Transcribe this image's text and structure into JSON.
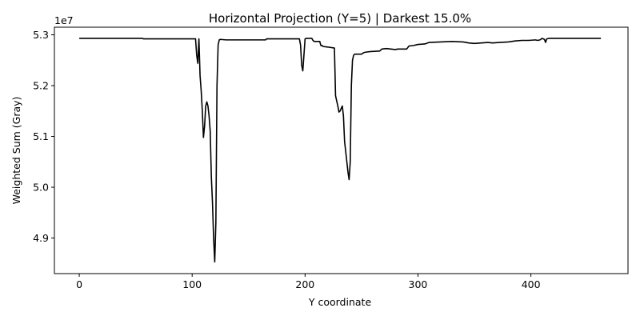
{
  "chart_data": {
    "type": "line",
    "title": "Horizontal Projection (Y=5) | Darkest 15.0%",
    "xlabel": "Y coordinate",
    "ylabel": "Weighted Sum (Gray)",
    "y_offset_label": "1e7",
    "xlim": [
      -22,
      486
    ],
    "ylim": [
      4.83,
      5.315
    ],
    "x_ticks": [
      0,
      100,
      200,
      300,
      400
    ],
    "x_tick_labels": [
      "0",
      "100",
      "200",
      "300",
      "400"
    ],
    "y_ticks": [
      4.9,
      5.0,
      5.1,
      5.2,
      5.3
    ],
    "y_tick_labels": [
      "4.9",
      "5.0",
      "5.1",
      "5.2",
      "5.3"
    ],
    "grid": false,
    "line_color": "#000000",
    "series": [
      {
        "x": [
          0,
          56,
          57,
          103,
          104,
          105,
          106,
          107,
          108,
          109,
          110,
          111,
          112,
          113,
          114,
          115,
          116,
          117,
          118,
          119,
          120,
          121,
          122,
          123,
          124,
          125,
          130,
          165,
          166,
          195,
          196,
          197,
          198,
          199,
          200,
          201,
          206,
          207,
          208,
          213,
          214,
          215,
          216,
          220,
          226,
          227,
          228,
          229,
          230,
          231,
          232,
          233,
          234,
          235,
          236,
          237,
          238,
          239,
          240,
          241,
          242,
          243,
          244,
          246,
          250,
          252,
          254,
          258,
          266,
          268,
          272,
          276,
          280,
          282,
          286,
          290,
          292,
          296,
          300,
          306,
          310,
          320,
          330,
          340,
          345,
          350,
          356,
          362,
          366,
          372,
          380,
          386,
          392,
          398,
          404,
          406,
          408,
          410,
          412,
          413,
          414,
          416,
          420,
          440,
          460,
          462
        ],
        "y": [
          5.293,
          5.293,
          5.292,
          5.292,
          5.26,
          5.244,
          5.292,
          5.22,
          5.19,
          5.15,
          5.098,
          5.12,
          5.16,
          5.168,
          5.16,
          5.14,
          5.11,
          5.02,
          4.97,
          4.9,
          4.853,
          4.93,
          5.2,
          5.28,
          5.29,
          5.291,
          5.29,
          5.29,
          5.292,
          5.292,
          5.28,
          5.24,
          5.229,
          5.26,
          5.292,
          5.293,
          5.293,
          5.289,
          5.287,
          5.287,
          5.279,
          5.279,
          5.277,
          5.276,
          5.274,
          5.18,
          5.17,
          5.16,
          5.148,
          5.15,
          5.155,
          5.16,
          5.14,
          5.09,
          5.07,
          5.05,
          5.03,
          5.015,
          5.05,
          5.2,
          5.25,
          5.26,
          5.262,
          5.262,
          5.262,
          5.265,
          5.266,
          5.267,
          5.268,
          5.272,
          5.273,
          5.272,
          5.271,
          5.272,
          5.272,
          5.272,
          5.278,
          5.279,
          5.281,
          5.282,
          5.285,
          5.286,
          5.287,
          5.286,
          5.284,
          5.283,
          5.284,
          5.285,
          5.284,
          5.285,
          5.286,
          5.288,
          5.289,
          5.289,
          5.29,
          5.289,
          5.29,
          5.293,
          5.291,
          5.285,
          5.292,
          5.293,
          5.293,
          5.293,
          5.293,
          5.293
        ]
      }
    ]
  }
}
